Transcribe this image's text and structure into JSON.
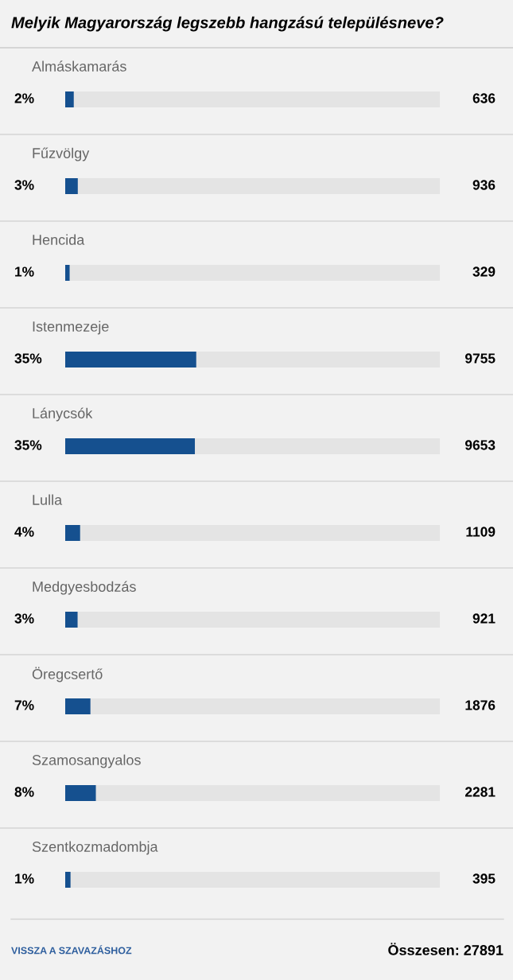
{
  "chart_data": {
    "type": "bar",
    "orientation": "horizontal",
    "title": "Melyik Magyarország legszebb hangzású településneve?",
    "categories": [
      "Almáskamarás",
      "Fűzvölgy",
      "Hencida",
      "Istenmezeje",
      "Lánycsók",
      "Lulla",
      "Medgyesbodzás",
      "Öregcsertő",
      "Szamosangyalos",
      "Szentkozmadombja"
    ],
    "values": [
      636,
      936,
      329,
      9755,
      9653,
      1109,
      921,
      1876,
      2281,
      395
    ],
    "color": "#15508f",
    "xlim": [
      0,
      27891
    ],
    "data_labels": true,
    "annotations": [
      "2%",
      "3%",
      "1%",
      "35%",
      "35%",
      "4%",
      "3%",
      "7%",
      "8%",
      "1%",
      "VISSZA A SZAVAZÁSHOZ",
      "Összesen: 27891"
    ]
  }
}
